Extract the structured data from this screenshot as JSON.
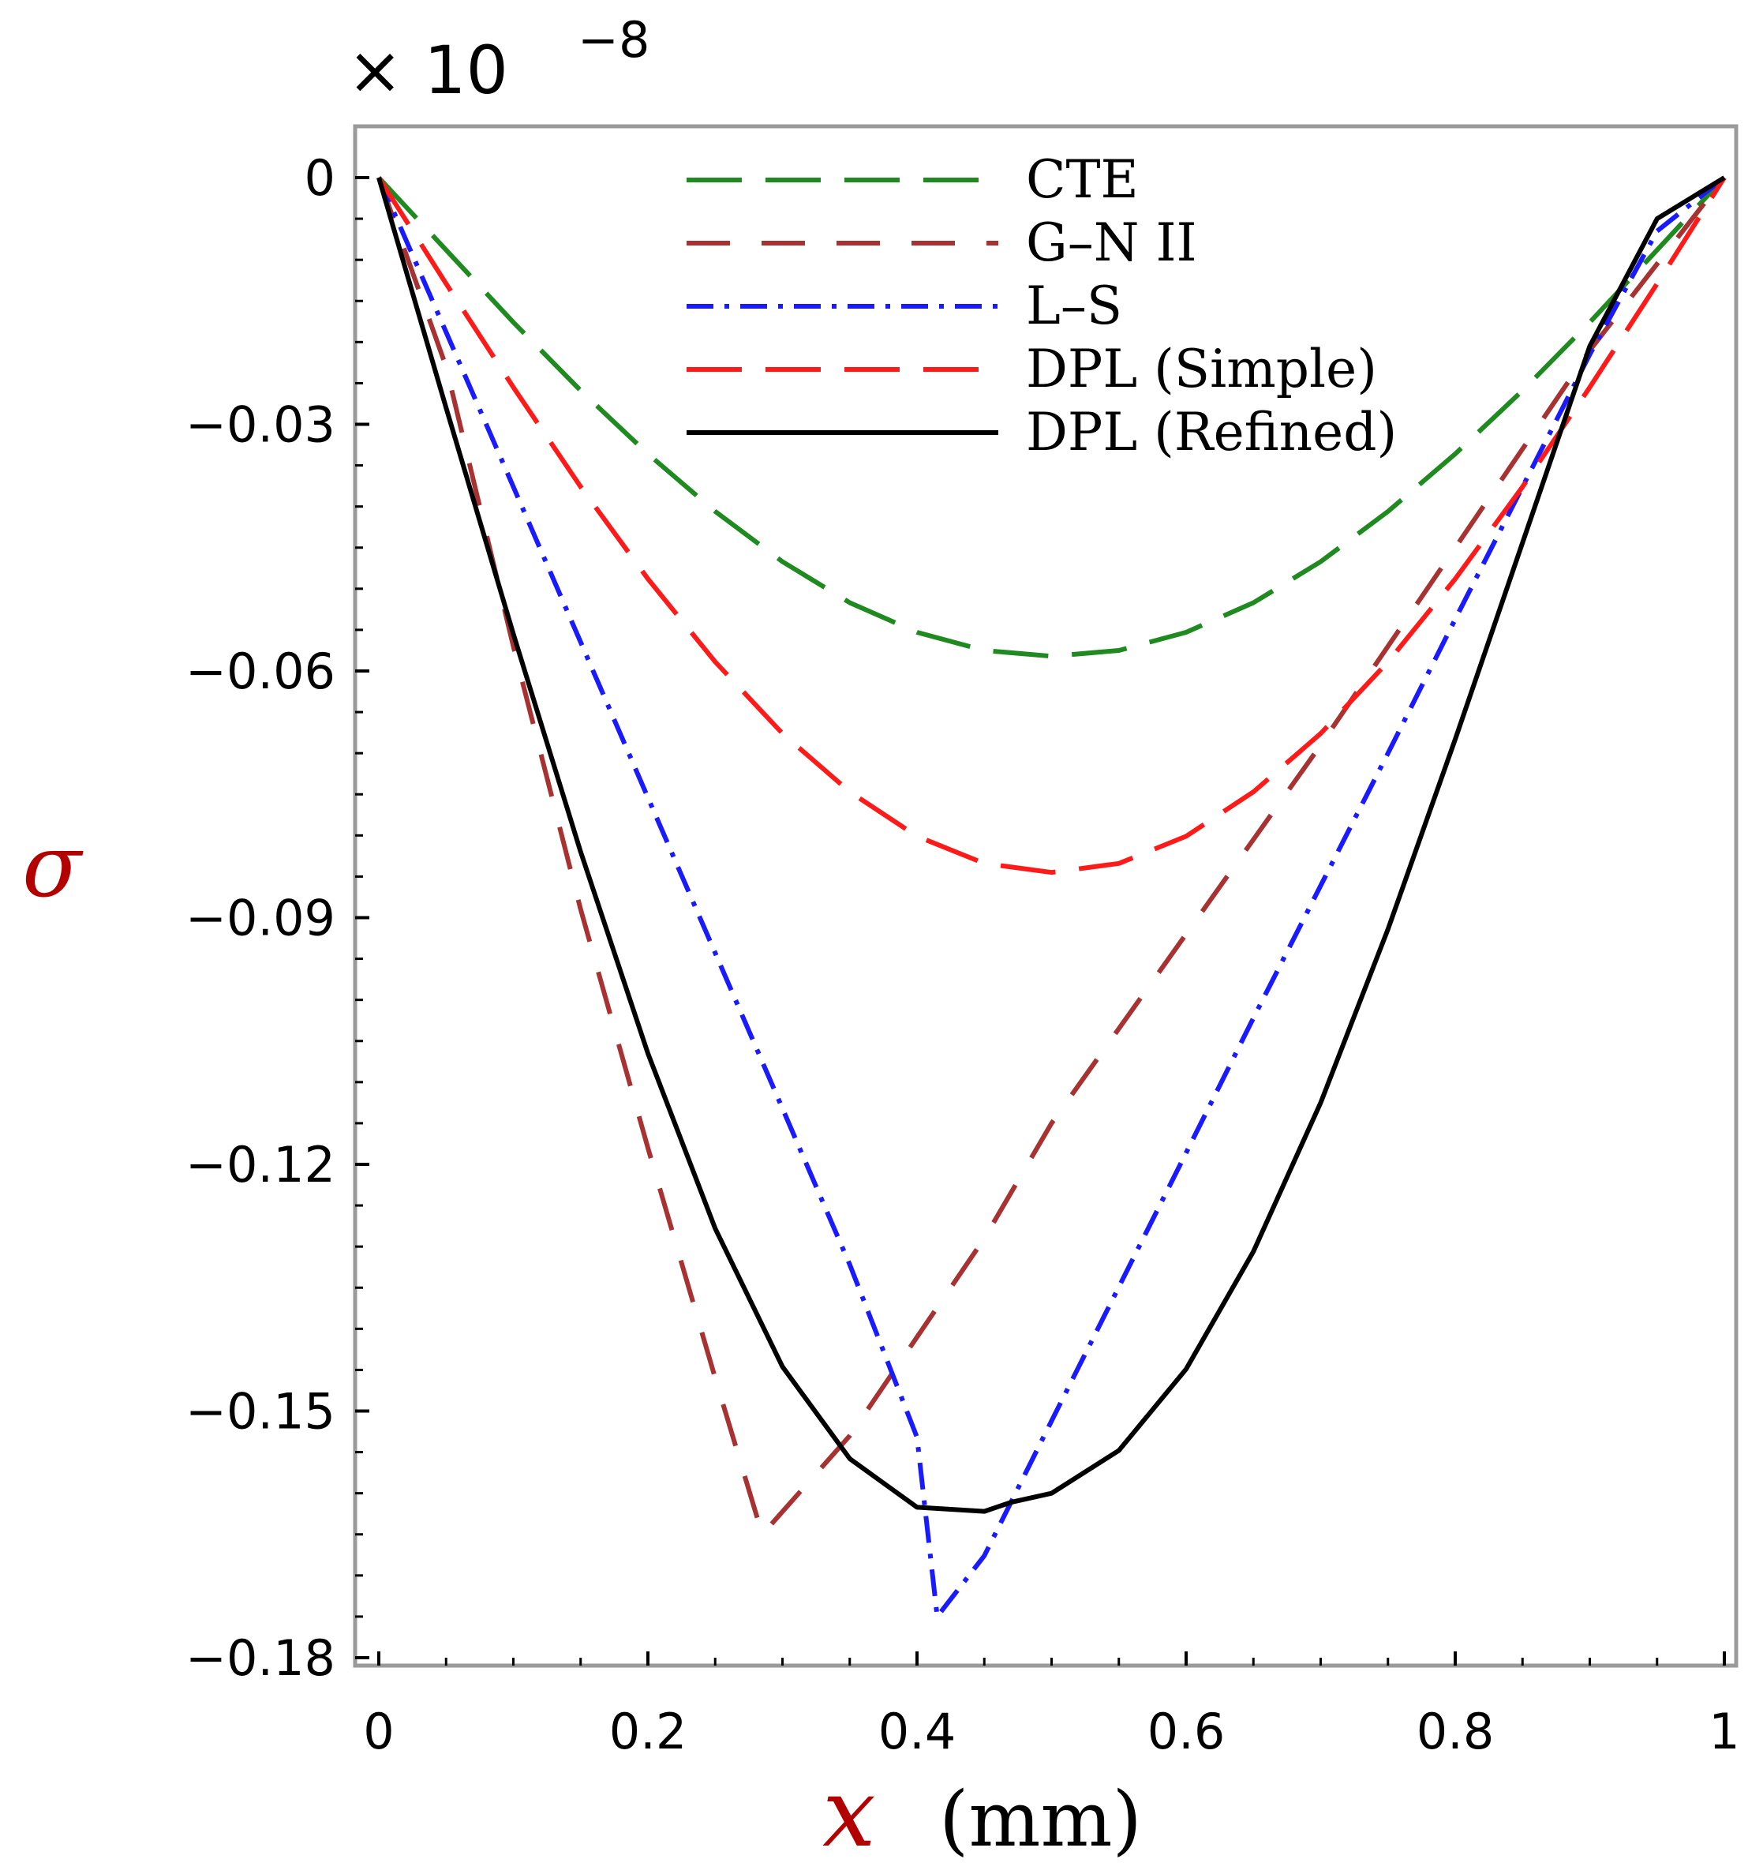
{
  "chart_data": {
    "type": "line",
    "title": "",
    "exponent_label": "× 10",
    "exponent_power": "−8",
    "xlabel_symbol": "x",
    "xlabel_unit": "(mm)",
    "ylabel_symbol": "σ",
    "xlim": [
      0,
      1
    ],
    "ylim": [
      -0.18,
      0
    ],
    "x_ticks": [
      0,
      0.2,
      0.4,
      0.6,
      0.8,
      1
    ],
    "x_tick_labels": [
      "0",
      "0.2",
      "0.4",
      "0.6",
      "0.8",
      "1"
    ],
    "y_ticks": [
      0,
      -0.03,
      -0.06,
      -0.09,
      -0.12,
      -0.15,
      -0.18
    ],
    "y_tick_labels": [
      "0",
      "−0.03",
      "−0.06",
      "−0.09",
      "−0.12",
      "−0.15",
      "−0.18"
    ],
    "grid": false,
    "legend_position": "top-center",
    "series": [
      {
        "name": "CTE",
        "color": "#1f8a1f",
        "style": "long-dash",
        "x": [
          0,
          0.05,
          0.1,
          0.15,
          0.2,
          0.25,
          0.3,
          0.35,
          0.4,
          0.45,
          0.5,
          0.55,
          0.6,
          0.65,
          0.7,
          0.75,
          0.8,
          0.85,
          0.9,
          0.95,
          1
        ],
        "y": [
          0,
          -0.0088,
          -0.0176,
          -0.0259,
          -0.0336,
          -0.0406,
          -0.0467,
          -0.0517,
          -0.0553,
          -0.0575,
          -0.0582,
          -0.0575,
          -0.0553,
          -0.0517,
          -0.0467,
          -0.0406,
          -0.0336,
          -0.0259,
          -0.0176,
          -0.0088,
          0
        ]
      },
      {
        "name": "G–N II",
        "color": "#a83232",
        "style": "dash",
        "x": [
          0,
          0.05,
          0.1,
          0.15,
          0.2,
          0.25,
          0.285,
          0.35,
          0.4,
          0.45,
          0.5,
          0.6,
          0.7,
          0.8,
          0.9,
          1
        ],
        "y": [
          0,
          -0.023,
          -0.057,
          -0.089,
          -0.118,
          -0.146,
          -0.165,
          -0.153,
          -0.141,
          -0.129,
          -0.115,
          -0.092,
          -0.069,
          -0.045,
          -0.021,
          0
        ]
      },
      {
        "name": "L–S",
        "color": "#1a1aff",
        "style": "dash-dot",
        "x": [
          0,
          0.05,
          0.1,
          0.15,
          0.2,
          0.25,
          0.3,
          0.35,
          0.4,
          0.415,
          0.45,
          0.5,
          0.55,
          0.6,
          0.65,
          0.7,
          0.75,
          0.8,
          0.85,
          0.9,
          0.95,
          1
        ],
        "y": [
          0,
          -0.0188,
          -0.0376,
          -0.0565,
          -0.0754,
          -0.0943,
          -0.1132,
          -0.1322,
          -0.1532,
          -0.175,
          -0.1676,
          -0.1512,
          -0.1349,
          -0.1186,
          -0.1022,
          -0.0861,
          -0.07,
          -0.0537,
          -0.0376,
          -0.0215,
          -0.0065,
          0
        ]
      },
      {
        "name": "DPL (Simple)",
        "color": "#ff1a1a",
        "style": "long-dash",
        "x": [
          0,
          0.05,
          0.1,
          0.15,
          0.2,
          0.25,
          0.3,
          0.35,
          0.4,
          0.45,
          0.5,
          0.55,
          0.6,
          0.65,
          0.7,
          0.75,
          0.8,
          0.85,
          0.9,
          0.95,
          1
        ],
        "y": [
          0,
          -0.0129,
          -0.0255,
          -0.0376,
          -0.0488,
          -0.0589,
          -0.0676,
          -0.0747,
          -0.0801,
          -0.0834,
          -0.0845,
          -0.0834,
          -0.0801,
          -0.0747,
          -0.0676,
          -0.0589,
          -0.0488,
          -0.0376,
          -0.0255,
          -0.0129,
          0
        ]
      },
      {
        "name": "DPL (Refined)",
        "color": "#000000",
        "style": "solid",
        "x": [
          0,
          0.05,
          0.1,
          0.15,
          0.2,
          0.25,
          0.3,
          0.35,
          0.4,
          0.45,
          0.47,
          0.5,
          0.55,
          0.6,
          0.65,
          0.7,
          0.75,
          0.8,
          0.85,
          0.9,
          0.95,
          1
        ],
        "y": [
          0,
          -0.028,
          -0.0555,
          -0.082,
          -0.1065,
          -0.1278,
          -0.1446,
          -0.1558,
          -0.1617,
          -0.1622,
          -0.1611,
          -0.16,
          -0.1548,
          -0.1449,
          -0.1306,
          -0.1125,
          -0.0914,
          -0.0683,
          -0.0444,
          -0.0205,
          -0.005,
          0
        ]
      }
    ]
  }
}
